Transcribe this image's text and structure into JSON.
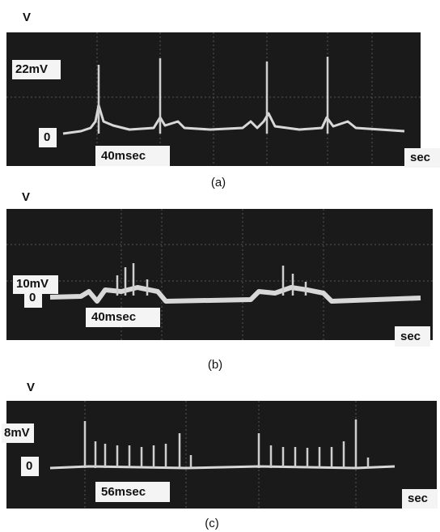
{
  "panels": [
    {
      "axis_label": "V",
      "level_label": "22mV",
      "zero_label": "0",
      "time_label": "40msec",
      "unit_label": "sec",
      "caption": "(a)"
    },
    {
      "axis_label": "V",
      "level_label": "10mV",
      "zero_label": "0",
      "time_label": "40msec",
      "unit_label": "sec",
      "caption": "(b)"
    },
    {
      "axis_label": "V",
      "level_label": "8mV",
      "zero_label": "0",
      "time_label": "56msec",
      "unit_label": "sec",
      "caption": "(c)"
    }
  ]
}
